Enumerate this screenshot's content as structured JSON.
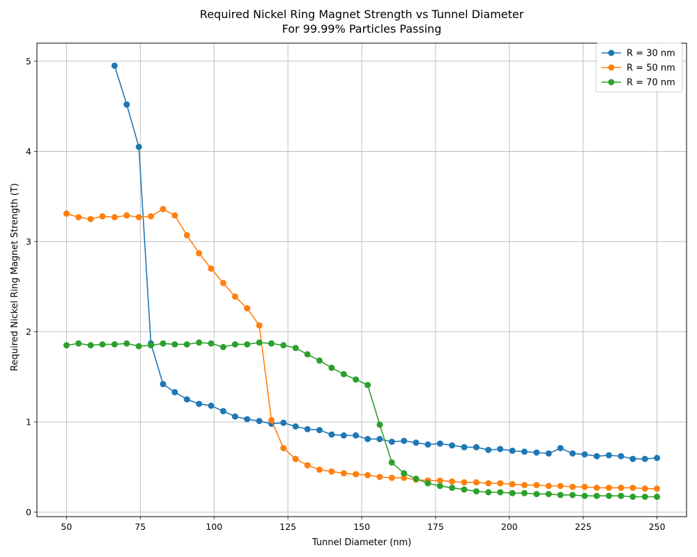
{
  "chart_data": {
    "type": "line",
    "title": "Required Nickel Ring Magnet Strength vs Tunnel Diameter",
    "subtitle": "For 99.99% Particles Passing",
    "xlabel": "Tunnel Diameter (nm)",
    "ylabel": "Required Nickel Ring Magnet Strength (T)",
    "xlim": [
      40,
      260
    ],
    "ylim": [
      -0.05,
      5.2
    ],
    "xticks": [
      50,
      75,
      100,
      125,
      150,
      175,
      200,
      225,
      250
    ],
    "yticks": [
      0,
      1,
      2,
      3,
      4,
      5
    ],
    "grid": true,
    "legend_position": "top-right",
    "series": [
      {
        "name": "R = 30 nm",
        "color": "#1f77b4",
        "x": [
          66.3,
          70.4,
          74.5,
          78.6,
          82.7,
          86.7,
          90.8,
          94.9,
          99.0,
          103.1,
          107.1,
          111.2,
          115.3,
          119.4,
          123.5,
          127.6,
          131.6,
          135.7,
          139.8,
          143.9,
          148.0,
          152.0,
          156.1,
          160.2,
          164.3,
          168.4,
          172.4,
          176.5,
          180.6,
          184.7,
          188.8,
          192.9,
          196.9,
          201.0,
          205.1,
          209.2,
          213.3,
          217.3,
          221.4,
          225.5,
          229.6,
          233.7,
          237.8,
          241.8,
          245.9,
          250.0
        ],
        "y": [
          4.95,
          4.52,
          4.05,
          1.87,
          1.42,
          1.33,
          1.25,
          1.2,
          1.18,
          1.12,
          1.06,
          1.03,
          1.01,
          0.98,
          0.99,
          0.95,
          0.92,
          0.91,
          0.86,
          0.85,
          0.85,
          0.81,
          0.81,
          0.78,
          0.79,
          0.77,
          0.75,
          0.76,
          0.74,
          0.72,
          0.72,
          0.69,
          0.7,
          0.68,
          0.67,
          0.66,
          0.65,
          0.71,
          0.65,
          0.64,
          0.62,
          0.63,
          0.62,
          0.59,
          0.59,
          0.6
        ]
      },
      {
        "name": "R = 50 nm",
        "color": "#ff7f0e",
        "x": [
          50.0,
          54.1,
          58.2,
          62.2,
          66.3,
          70.4,
          74.5,
          78.6,
          82.7,
          86.7,
          90.8,
          94.9,
          99.0,
          103.1,
          107.1,
          111.2,
          115.3,
          119.4,
          123.5,
          127.6,
          131.6,
          135.7,
          139.8,
          143.9,
          148.0,
          152.0,
          156.1,
          160.2,
          164.3,
          168.4,
          172.4,
          176.5,
          180.6,
          184.7,
          188.8,
          192.9,
          196.9,
          201.0,
          205.1,
          209.2,
          213.3,
          217.3,
          221.4,
          225.5,
          229.6,
          233.7,
          237.8,
          241.8,
          245.9,
          250.0
        ],
        "y": [
          3.31,
          3.27,
          3.25,
          3.28,
          3.27,
          3.29,
          3.27,
          3.28,
          3.36,
          3.29,
          3.07,
          2.87,
          2.7,
          2.54,
          2.39,
          2.26,
          2.07,
          1.02,
          0.71,
          0.59,
          0.52,
          0.47,
          0.45,
          0.43,
          0.42,
          0.41,
          0.39,
          0.38,
          0.38,
          0.36,
          0.35,
          0.35,
          0.34,
          0.33,
          0.33,
          0.32,
          0.32,
          0.31,
          0.3,
          0.3,
          0.29,
          0.29,
          0.28,
          0.28,
          0.27,
          0.27,
          0.27,
          0.27,
          0.26,
          0.26
        ]
      },
      {
        "name": "R = 70 nm",
        "color": "#2ca02c",
        "x": [
          50.0,
          54.1,
          58.2,
          62.2,
          66.3,
          70.4,
          74.5,
          78.6,
          82.7,
          86.7,
          90.8,
          94.9,
          99.0,
          103.1,
          107.1,
          111.2,
          115.3,
          119.4,
          123.5,
          127.6,
          131.6,
          135.7,
          139.8,
          143.9,
          148.0,
          152.0,
          156.1,
          160.2,
          164.3,
          168.4,
          172.4,
          176.5,
          180.6,
          184.7,
          188.8,
          192.9,
          196.9,
          201.0,
          205.1,
          209.2,
          213.3,
          217.3,
          221.4,
          225.5,
          229.6,
          233.7,
          237.8,
          241.8,
          245.9,
          250.0
        ],
        "y": [
          1.85,
          1.87,
          1.85,
          1.86,
          1.86,
          1.87,
          1.84,
          1.85,
          1.87,
          1.86,
          1.86,
          1.88,
          1.87,
          1.83,
          1.86,
          1.86,
          1.88,
          1.87,
          1.85,
          1.82,
          1.75,
          1.68,
          1.6,
          1.53,
          1.47,
          1.41,
          0.97,
          0.55,
          0.43,
          0.37,
          0.32,
          0.29,
          0.27,
          0.25,
          0.23,
          0.22,
          0.22,
          0.21,
          0.21,
          0.2,
          0.2,
          0.19,
          0.19,
          0.18,
          0.18,
          0.18,
          0.18,
          0.17,
          0.17,
          0.17
        ]
      }
    ]
  }
}
